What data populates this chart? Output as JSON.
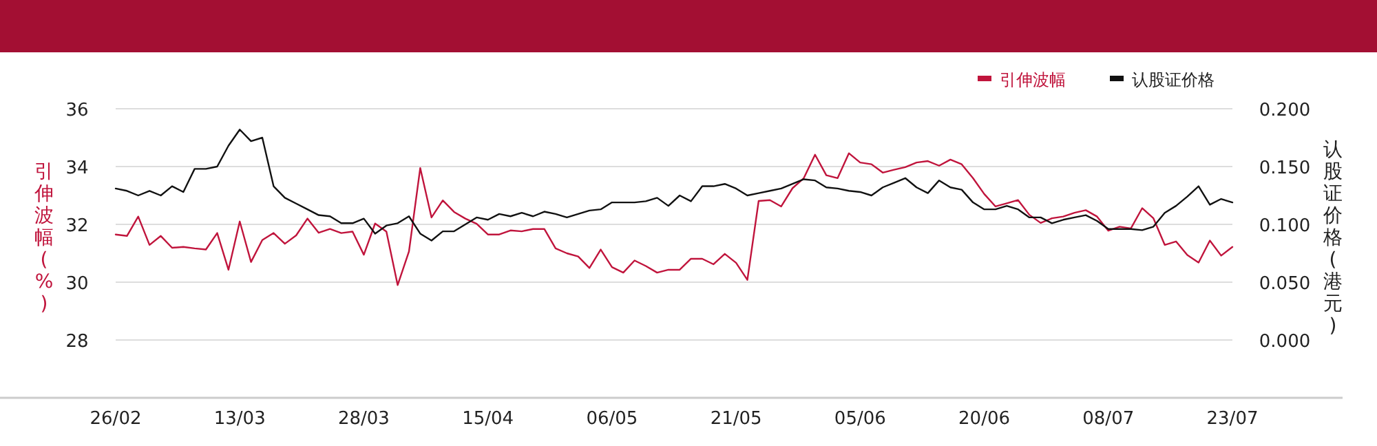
{
  "chart_data": {
    "type": "line",
    "categories": [
      "26/02",
      null,
      null,
      null,
      null,
      null,
      null,
      null,
      null,
      null,
      null,
      "13/03",
      null,
      null,
      null,
      null,
      null,
      null,
      null,
      null,
      null,
      null,
      "28/03",
      null,
      null,
      null,
      null,
      null,
      null,
      null,
      null,
      null,
      null,
      "15/04",
      null,
      null,
      null,
      null,
      null,
      null,
      null,
      null,
      null,
      null,
      "06/05",
      null,
      null,
      null,
      null,
      null,
      null,
      null,
      null,
      null,
      null,
      "21/05",
      null,
      null,
      null,
      null,
      null,
      null,
      null,
      null,
      null,
      null,
      "05/06",
      null,
      null,
      null,
      null,
      null,
      null,
      null,
      null,
      null,
      null,
      "20/06",
      null,
      null,
      null,
      null,
      null,
      null,
      null,
      null,
      null,
      null,
      "08/07",
      null,
      null,
      null,
      null,
      null,
      null,
      null,
      null,
      null,
      null,
      "23/07"
    ],
    "series": [
      {
        "name": "引伸波幅",
        "color": "#c0143c",
        "values": [
          31.65,
          31.6,
          32.27,
          31.29,
          31.6,
          31.19,
          31.22,
          31.17,
          31.13,
          31.7,
          30.43,
          32.1,
          30.7,
          31.46,
          31.7,
          31.33,
          31.62,
          32.2,
          31.71,
          31.84,
          31.7,
          31.75,
          30.95,
          32.03,
          31.75,
          29.9,
          31.06,
          33.95,
          32.24,
          32.83,
          32.43,
          32.2,
          32.02,
          31.65,
          31.65,
          31.79,
          31.76,
          31.84,
          31.84,
          31.17,
          31.0,
          30.89,
          30.49,
          31.13,
          30.52,
          30.33,
          30.75,
          30.56,
          30.33,
          30.43,
          30.43,
          30.81,
          30.81,
          30.62,
          30.98,
          30.67,
          30.08,
          32.81,
          32.84,
          32.62,
          33.25,
          33.6,
          34.41,
          33.7,
          33.6,
          34.46,
          34.14,
          34.08,
          33.79,
          33.89,
          33.98,
          34.14,
          34.19,
          34.03,
          34.24,
          34.08,
          33.6,
          33.05,
          32.62,
          32.73,
          32.84,
          32.33,
          32.05,
          32.21,
          32.27,
          32.4,
          32.49,
          32.27,
          31.78,
          31.92,
          31.86,
          32.56,
          32.21,
          31.29,
          31.41,
          30.94,
          30.68,
          31.44,
          30.92,
          31.22
        ]
      },
      {
        "name": "认股证价格",
        "color": "#111111",
        "axis": "y2",
        "values": [
          0.131,
          0.129,
          0.125,
          0.129,
          0.125,
          0.133,
          0.128,
          0.148,
          0.148,
          0.15,
          0.168,
          0.182,
          0.172,
          0.175,
          0.133,
          0.123,
          0.118,
          0.113,
          0.108,
          0.107,
          0.101,
          0.101,
          0.105,
          0.092,
          0.099,
          0.101,
          0.107,
          0.092,
          0.086,
          0.094,
          0.094,
          0.1,
          0.106,
          0.104,
          0.109,
          0.107,
          0.11,
          0.107,
          0.111,
          0.109,
          0.106,
          0.109,
          0.112,
          0.113,
          0.119,
          0.119,
          0.119,
          0.12,
          0.123,
          0.116,
          0.125,
          0.12,
          0.133,
          0.133,
          0.135,
          0.131,
          0.125,
          0.127,
          0.129,
          0.131,
          0.135,
          0.139,
          0.138,
          0.132,
          0.131,
          0.129,
          0.128,
          0.125,
          0.132,
          0.136,
          0.14,
          0.132,
          0.127,
          0.138,
          0.132,
          0.13,
          0.119,
          0.113,
          0.113,
          0.116,
          0.113,
          0.106,
          0.106,
          0.101,
          0.104,
          0.106,
          0.108,
          0.103,
          0.096,
          0.096,
          0.096,
          0.095,
          0.098,
          0.11,
          0.116,
          0.124,
          0.133,
          0.117,
          0.122,
          0.119
        ]
      }
    ],
    "ylabel": "引伸波幅(%)",
    "y2label": "认股证价格(港元)",
    "ylim": [
      26,
      36
    ],
    "yticks": [
      28,
      30,
      32,
      34,
      36
    ],
    "y2lim": [
      -0.05,
      0.2
    ],
    "y2ticks": [
      {
        "value": 0,
        "label": "0.000"
      },
      {
        "value": 0.05,
        "label": "0.050"
      },
      {
        "value": 0.1,
        "label": "0.100"
      },
      {
        "value": 0.15,
        "label": "0.150"
      },
      {
        "value": 0.2,
        "label": "0.200"
      }
    ],
    "grid": "y",
    "legend": "top right"
  }
}
